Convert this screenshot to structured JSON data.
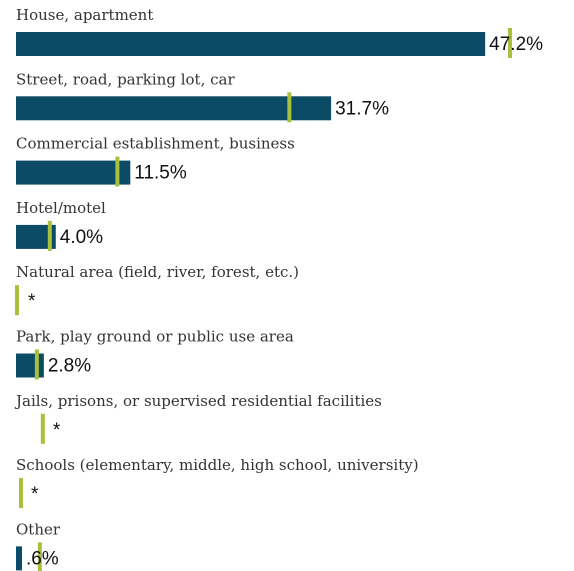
{
  "chart_data": {
    "type": "hbar",
    "categories": [
      "House, apartment",
      "Street, road, parking lot, car",
      "Commercial establishment, business",
      "Hotel/motel",
      "Natural area (field, river, forest, etc.)",
      "Park, play ground or public use area",
      "Jails, prisons, or supervised residential facilities",
      "Schools (elementary, middle, high school, university)",
      "Other"
    ],
    "series": [
      {
        "color": "#0b4b66",
        "values": [
          47.2,
          31.7,
          11.5,
          4.0,
          null,
          2.8,
          null,
          null,
          0.6
        ],
        "value_labels": [
          "47.2%",
          "31.7%",
          "11.5%",
          "4.0%",
          "*",
          "2.8%",
          "*",
          "*",
          ".6%"
        ]
      },
      {
        "color": "#a8c03c",
        "values": [
          49.7,
          27.5,
          10.2,
          3.4,
          0.1,
          2.1,
          2.7,
          0.5,
          2.4
        ]
      }
    ],
    "xlim": [
      0,
      50
    ]
  }
}
